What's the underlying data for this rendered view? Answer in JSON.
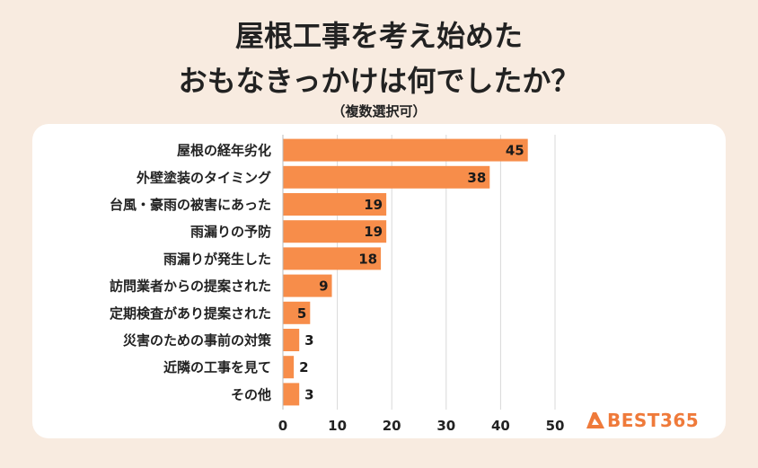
{
  "title_line1": "屋根工事を考え始めた",
  "title_line2": "おもなきっかけは何でしたか？",
  "subtitle": "（複数選択可）",
  "brand": "BEST365",
  "colors": {
    "bar": "#f78d4a",
    "grid": "#d9d9d9",
    "brand": "#ef7a3a"
  },
  "chart_data": {
    "type": "bar",
    "orientation": "horizontal",
    "categories": [
      "屋根の経年劣化",
      "外壁塗装のタイミング",
      "台風・豪雨の被害にあった",
      "雨漏りの予防",
      "雨漏りが発生した",
      "訪問業者からの提案された",
      "定期検査があり提案された",
      "災害のための事前の対策",
      "近隣の工事を見て",
      "その他"
    ],
    "values": [
      45,
      38,
      19,
      19,
      18,
      9,
      5,
      3,
      2,
      3
    ],
    "xlim": [
      0,
      50
    ],
    "xticks": [
      0,
      10,
      20,
      30,
      40,
      50
    ],
    "grid": true,
    "xlabel": "",
    "ylabel": ""
  }
}
